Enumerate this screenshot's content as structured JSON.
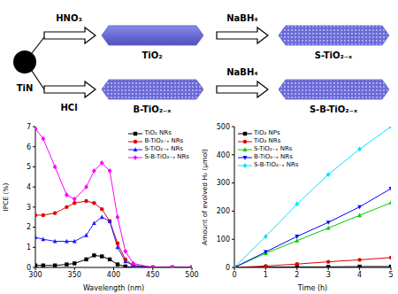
{
  "diagram": {
    "start": "TiN",
    "top_acid": "HNO₃",
    "bottom_acid": "HCl",
    "reductant": "NaBH₄",
    "top_middle": "TiO₂",
    "top_end": "S-TiO₂₋ₓ",
    "bottom_middle": "B-TiO₂₋ₓ",
    "bottom_end": "S-B-TiO₂₋ₓ"
  },
  "chart_data": [
    {
      "type": "line",
      "x_label": "Wavelength (nm)",
      "y_label": "IPCE (%)",
      "x": [
        300,
        310,
        325,
        340,
        350,
        365,
        375,
        385,
        395,
        405,
        415,
        425,
        450,
        475,
        500
      ],
      "xlim": [
        300,
        500
      ],
      "xticks": [
        300,
        350,
        400,
        450,
        500
      ],
      "ylim": [
        0,
        7
      ],
      "yticks": [
        0,
        1,
        2,
        3,
        4,
        5,
        6,
        7
      ],
      "legend": "upper right",
      "series": [
        {
          "name": "TiO₂ NRs",
          "color": "#000000",
          "marker": "square",
          "values": [
            0.1,
            0.1,
            0.1,
            0.15,
            0.2,
            0.4,
            0.6,
            0.55,
            0.4,
            0.15,
            0.05,
            0,
            0,
            0,
            0
          ]
        },
        {
          "name": "B-TiO₂₋ₓ NRs",
          "color": "#e00000",
          "marker": "circle",
          "values": [
            2.6,
            2.6,
            2.7,
            3.0,
            3.2,
            3.3,
            3.2,
            2.9,
            2.3,
            1.2,
            0.4,
            0.1,
            0,
            0,
            0
          ]
        },
        {
          "name": "S-TiO₂₋ₓ NRs",
          "color": "#1a1aff",
          "marker": "triangle",
          "values": [
            1.5,
            1.4,
            1.3,
            1.3,
            1.3,
            1.6,
            2.2,
            2.5,
            2.3,
            1.0,
            0.3,
            0.1,
            0,
            0,
            0
          ]
        },
        {
          "name": "S-B-TiO₂₋ₓ NRs",
          "color": "#ff00ff",
          "marker": "diamond",
          "values": [
            6.9,
            6.4,
            5.0,
            3.6,
            3.4,
            4.0,
            4.8,
            5.2,
            4.8,
            2.5,
            0.8,
            0.2,
            0,
            0,
            0
          ]
        }
      ]
    },
    {
      "type": "line",
      "x_label": "Time (h)",
      "y_label": "Amount of evolved H₂ (μmol)",
      "x": [
        0,
        1,
        2,
        3,
        4,
        5
      ],
      "xlim": [
        0,
        5
      ],
      "xticks": [
        0,
        1,
        2,
        3,
        4,
        5
      ],
      "ylim": [
        0,
        500
      ],
      "yticks": [
        0,
        100,
        200,
        300,
        400,
        500
      ],
      "legend": "upper left",
      "series": [
        {
          "name": "TiO₂ NPs",
          "color": "#000000",
          "marker": "square",
          "values": [
            0,
            1,
            2,
            2,
            3,
            3
          ]
        },
        {
          "name": "TiO₂ NRs",
          "color": "#e00000",
          "marker": "circle",
          "values": [
            0,
            5,
            12,
            20,
            27,
            35
          ]
        },
        {
          "name": "S-TiO₂₋ₓ NRs",
          "color": "#00cc00",
          "marker": "triangle",
          "values": [
            0,
            50,
            95,
            140,
            185,
            230
          ]
        },
        {
          "name": "B-TiO₂₋ₓ NRs",
          "color": "#0000ff",
          "marker": "triangle-down",
          "values": [
            0,
            55,
            110,
            160,
            215,
            280
          ]
        },
        {
          "name": "S-B-TiO₂₋ₓ NRs",
          "color": "#00e5ff",
          "marker": "diamond",
          "values": [
            0,
            110,
            225,
            330,
            420,
            500
          ]
        }
      ]
    }
  ]
}
